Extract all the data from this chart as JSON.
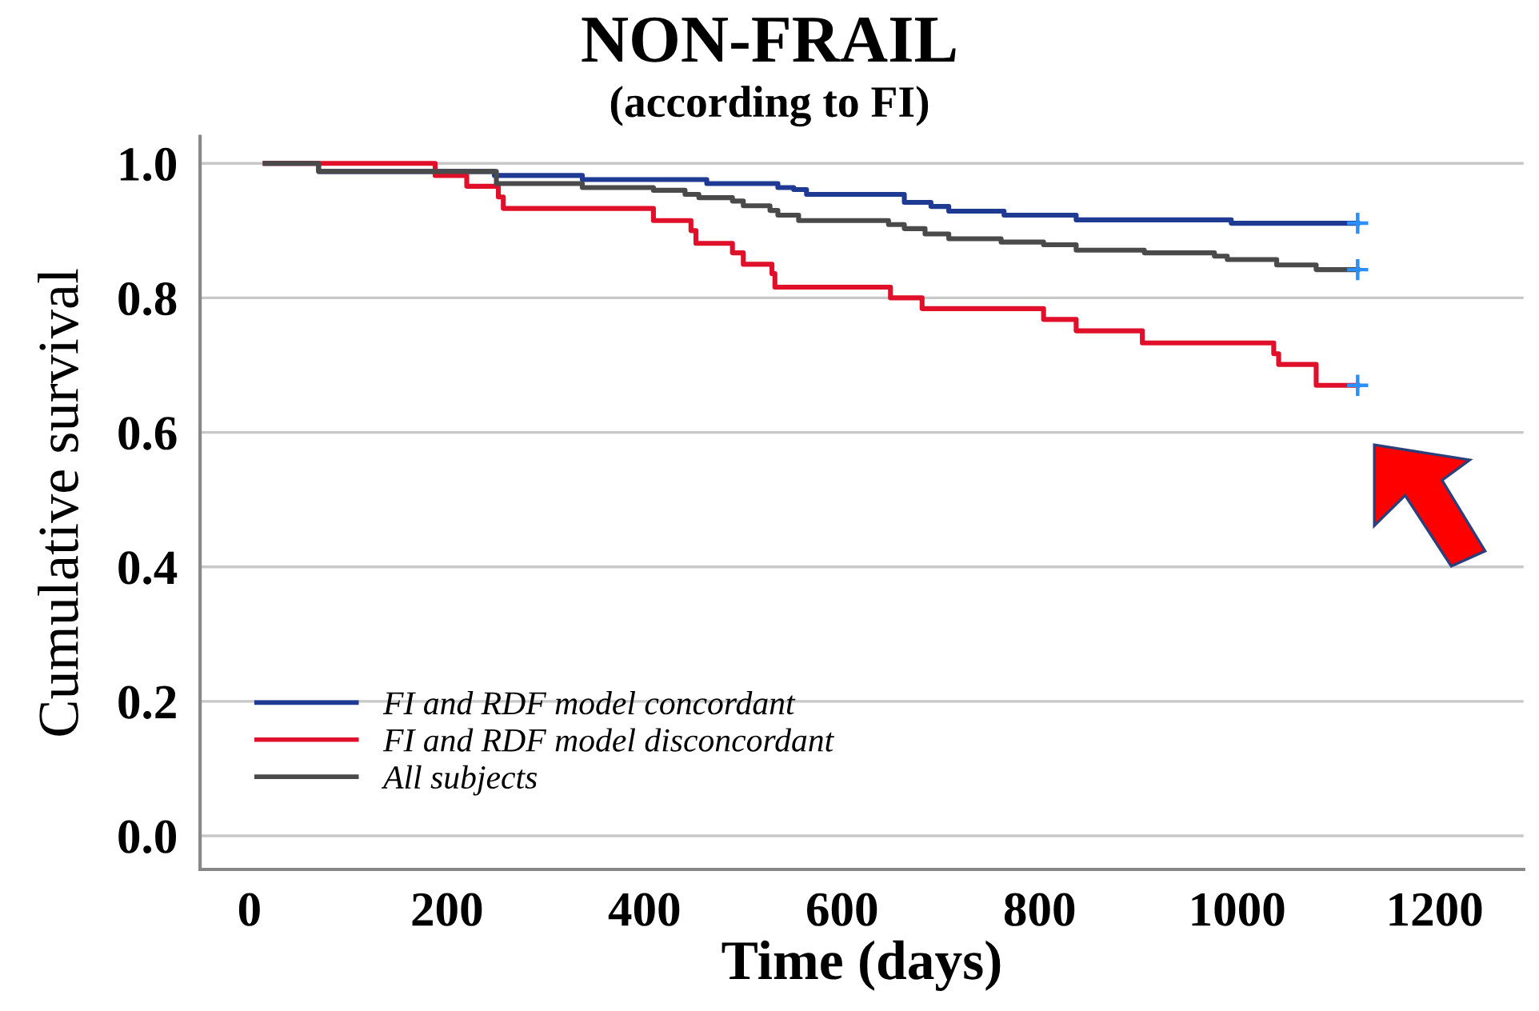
{
  "chart_data": {
    "type": "step",
    "title": "NON-FRAIL",
    "subtitle": "(according to FI)",
    "xlabel": "Time (days)",
    "ylabel": "Cumulative survival",
    "xlim": [
      -50,
      1290
    ],
    "xticks": [
      0,
      200,
      400,
      600,
      800,
      1000,
      1200
    ],
    "ylim": [
      -0.05,
      1.04
    ],
    "yticks": [
      {
        "value": 0,
        "label": "0.0"
      },
      {
        "value": 0.2,
        "label": "0.2"
      },
      {
        "value": 0.4,
        "label": "0.4"
      },
      {
        "value": 0.6,
        "label": "0.6"
      },
      {
        "value": 0.8,
        "label": "0.8"
      },
      {
        "value": 1,
        "label": "1.0"
      }
    ],
    "grid": "y",
    "legend": "bottom left",
    "marker": "none",
    "line_style": "solid",
    "series": [
      {
        "name": "FI and RDF model concordant",
        "color": "#1f3a93",
        "x": [
          16,
          70,
          248,
          337,
          463,
          535,
          551,
          564,
          663,
          690,
          708,
          764,
          837,
          994,
          1122
        ],
        "values": [
          1.0,
          0.988,
          0.982,
          0.976,
          0.97,
          0.964,
          0.961,
          0.954,
          0.942,
          0.936,
          0.929,
          0.923,
          0.916,
          0.911,
          0.911
        ]
      },
      {
        "name": "FI and RDF model disconcordant",
        "color": "#e0102a",
        "x": [
          16,
          188,
          220,
          252,
          257,
          409,
          447,
          452,
          489,
          500,
          529,
          532,
          649,
          681,
          804,
          837,
          904,
          1037,
          1042,
          1080,
          1122
        ],
        "values": [
          1.0,
          0.982,
          0.966,
          0.95,
          0.933,
          0.915,
          0.9,
          0.881,
          0.867,
          0.85,
          0.836,
          0.816,
          0.8,
          0.784,
          0.768,
          0.751,
          0.733,
          0.717,
          0.701,
          0.67,
          0.67
        ]
      },
      {
        "name": "All subjects",
        "color": "#4a4a4a",
        "x": [
          16,
          70,
          250,
          337,
          409,
          441,
          455,
          489,
          500,
          527,
          535,
          556,
          647,
          663,
          684,
          708,
          761,
          804,
          837,
          906,
          977,
          990,
          1040,
          1080,
          1122
        ],
        "values": [
          1.0,
          0.988,
          0.97,
          0.964,
          0.96,
          0.954,
          0.949,
          0.944,
          0.937,
          0.93,
          0.923,
          0.915,
          0.909,
          0.903,
          0.895,
          0.888,
          0.883,
          0.879,
          0.871,
          0.867,
          0.862,
          0.857,
          0.849,
          0.842,
          0.842
        ]
      },
      {
        "type": "scatter",
        "color": "#2b8fff",
        "marker": "cross",
        "x": [
          1122,
          1122,
          1122
        ],
        "values": [
          0.911,
          0.842,
          0.67
        ]
      }
    ]
  }
}
